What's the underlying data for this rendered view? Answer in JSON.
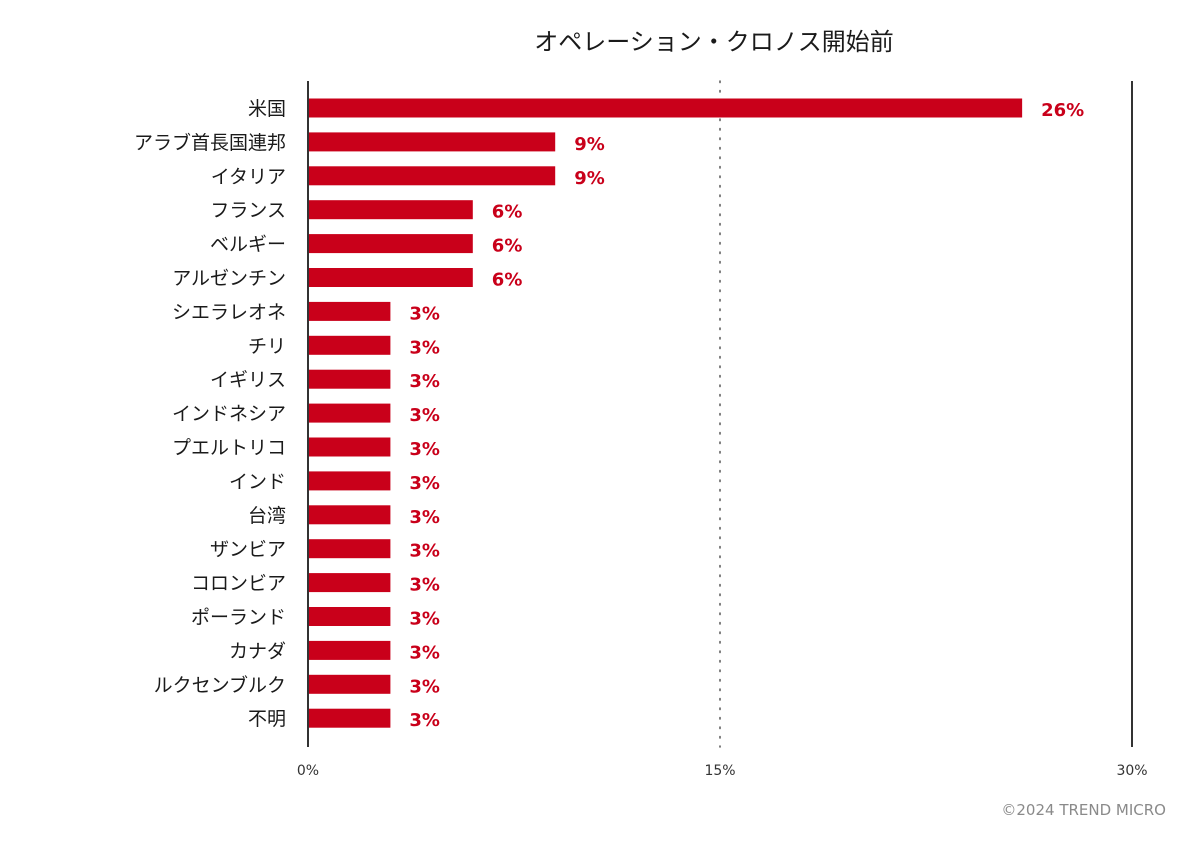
{
  "chart_data": {
    "type": "bar",
    "orientation": "horizontal",
    "title": "オペレーション・クロノス開始前",
    "categories": [
      "米国",
      "アラブ首長国連邦",
      "イタリア",
      "フランス",
      "ベルギー",
      "アルゼンチン",
      "シエラレオネ",
      "チリ",
      "イギリス",
      "インドネシア",
      "プエルトリコ",
      "インド",
      "台湾",
      "ザンビア",
      "コロンビア",
      "ポーランド",
      "カナダ",
      "ルクセンブルク",
      "不明"
    ],
    "values": [
      26,
      9,
      9,
      6,
      6,
      6,
      3,
      3,
      3,
      3,
      3,
      3,
      3,
      3,
      3,
      3,
      3,
      3,
      3
    ],
    "value_labels": [
      "26%",
      "9%",
      "9%",
      "6%",
      "6%",
      "6%",
      "3%",
      "3%",
      "3%",
      "3%",
      "3%",
      "3%",
      "3%",
      "3%",
      "3%",
      "3%",
      "3%",
      "3%",
      "3%"
    ],
    "xlim": [
      0,
      30
    ],
    "xticks": [
      0,
      15,
      30
    ],
    "xtick_labels": [
      "0%",
      "15%",
      "30%"
    ],
    "xlabel": "",
    "ylabel": "",
    "bar_color": "#c9001a",
    "legend": "none"
  },
  "footer": {
    "copyright": "©2024 TREND MICRO"
  }
}
